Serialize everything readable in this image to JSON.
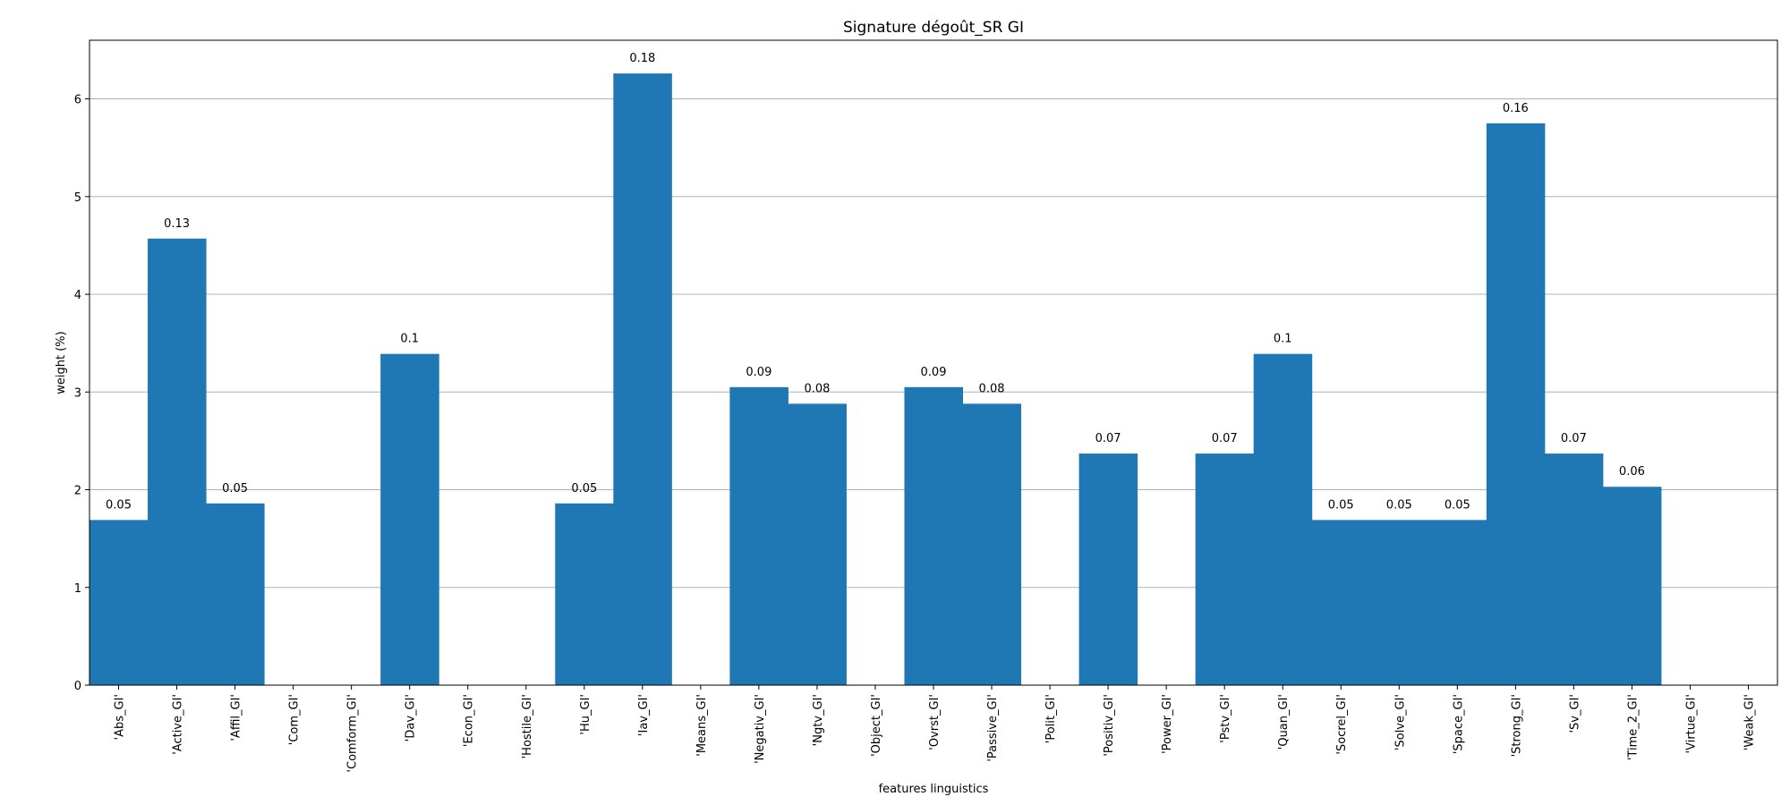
{
  "chart_data": {
    "type": "bar",
    "title": "Signature dégoût_SR GI",
    "xlabel": "features linguistics",
    "ylabel": "weight (%)",
    "ylim": [
      0,
      6.6
    ],
    "yticks": [
      0,
      1,
      2,
      3,
      4,
      5,
      6
    ],
    "grid": "horizontal",
    "bar_color": "#1f77b4",
    "categories": [
      "'Abs_GI'",
      "'Active_GI'",
      "'Affil_GI'",
      "'Com_GI'",
      "'Comform_GI'",
      "'Dav_GI'",
      "'Econ_GI'",
      "'Hostile_GI'",
      "'Hu_GI'",
      "'Iav_GI'",
      "'Means_GI'",
      "'Negativ_GI'",
      "'Ngtv_GI'",
      "'Object_GI'",
      "'Ovrst_GI'",
      "'Passive_GI'",
      "'Polit_GI'",
      "'Positiv_GI'",
      "'Power_GI'",
      "'Pstv_GI'",
      "'Quan_GI'",
      "'Socrel_GI'",
      "'Solve_GI'",
      "'Space_GI'",
      "'Strong_GI'",
      "'Sv_GI'",
      "'Time_2_GI'",
      "'Virtue_GI'",
      "'Weak_GI'"
    ],
    "values": [
      1.69,
      4.57,
      1.86,
      0,
      0,
      3.39,
      0,
      0,
      1.86,
      6.26,
      0,
      3.05,
      2.88,
      0,
      3.05,
      2.88,
      0,
      2.37,
      0,
      2.37,
      3.39,
      1.69,
      1.69,
      1.69,
      5.75,
      2.37,
      2.03,
      0,
      0
    ],
    "data_labels": [
      "0.05",
      "0.13",
      "0.05",
      "",
      "",
      "0.1",
      "",
      "",
      "0.05",
      "0.18",
      "",
      "0.09",
      "0.08",
      "",
      "0.09",
      "0.08",
      "",
      "0.07",
      "",
      "0.07",
      "0.1",
      "0.05",
      "0.05",
      "0.05",
      "0.16",
      "0.07",
      "0.06",
      "",
      ""
    ]
  }
}
